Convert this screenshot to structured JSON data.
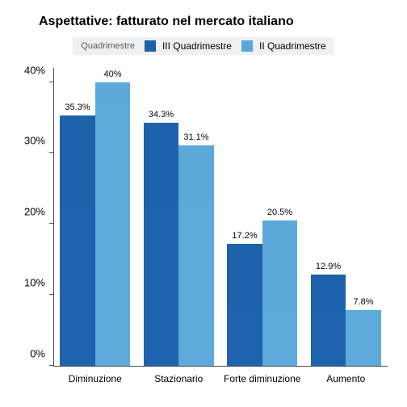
{
  "chart": {
    "type": "bar-grouped",
    "title": "Aspettative: fatturato nel mercato italiano",
    "title_fontsize": 16,
    "legend": {
      "label": "Quadrimestre",
      "label_fontsize": 11,
      "item_fontsize": 12,
      "items": [
        {
          "name": "III Quadrimestre",
          "color": "#1b5fab"
        },
        {
          "name": "II Quadrimestre",
          "color": "#5aa8db"
        }
      ],
      "bg_color": "#eef0f2"
    },
    "y_axis": {
      "min": 0,
      "max": 42,
      "ticks": [
        0,
        10,
        20,
        30,
        40
      ],
      "tick_labels": [
        "0%",
        "10%",
        "20%",
        "30%",
        "40%"
      ],
      "tick_fontsize": 13
    },
    "categories": [
      "Diminuzione",
      "Stazionario",
      "Forte diminuzione",
      "Aumento"
    ],
    "x_tick_fontsize": 12,
    "series": [
      {
        "name": "III Quadrimestre",
        "color": "#1b5fab",
        "values": [
          35.3,
          34.3,
          17.2,
          12.9
        ],
        "value_labels": [
          "35.3%",
          "34.3%",
          "17.2%",
          "12.9%"
        ]
      },
      {
        "name": "II Quadrimestre",
        "color": "#5aa8db",
        "values": [
          40,
          31.1,
          20.5,
          7.8
        ],
        "value_labels": [
          "40%",
          "31.1%",
          "20.5%",
          "7.8%"
        ]
      }
    ],
    "value_label_fontsize": 11,
    "background_color": "#ffffff",
    "axis_color": "#4d4d4d"
  }
}
